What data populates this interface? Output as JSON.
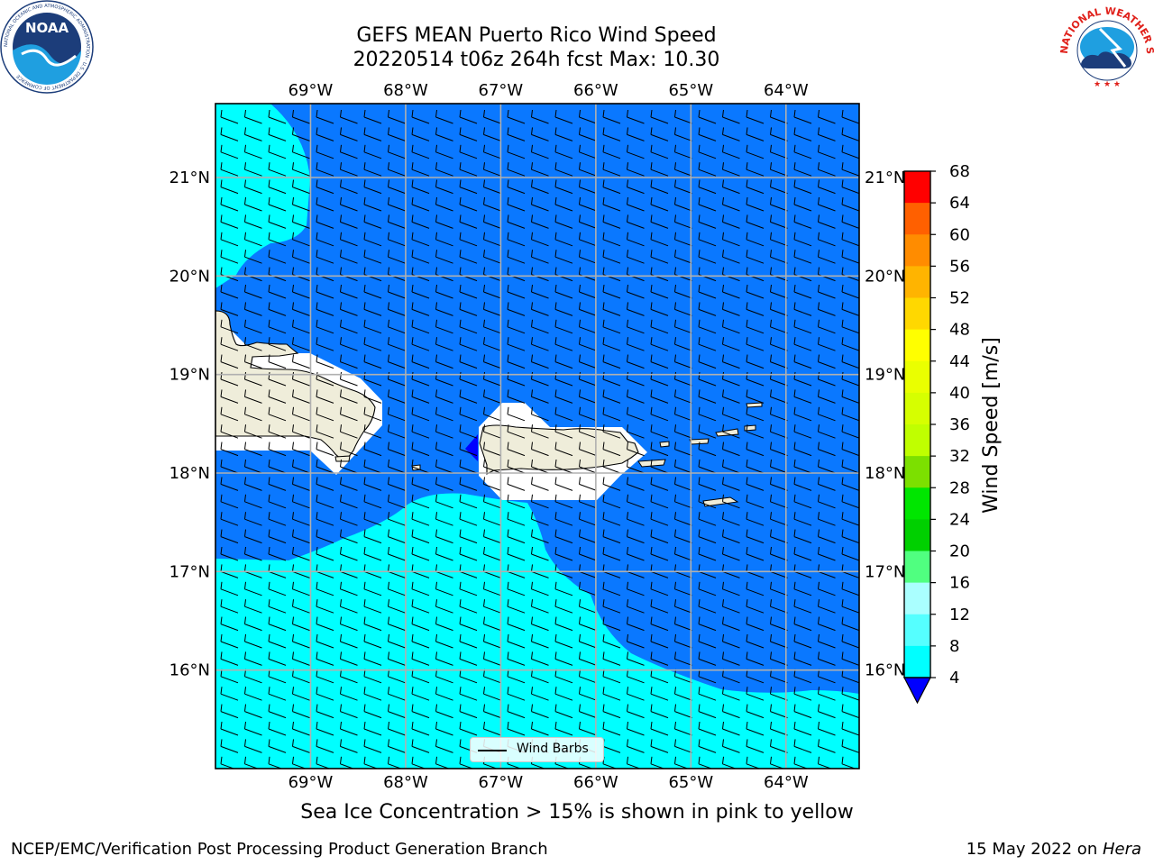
{
  "header": {
    "title_line1": "GEFS MEAN Puerto Rico Wind Speed",
    "title_line2": "20220514 t06z 264h fcst   Max: 10.30"
  },
  "logos": {
    "left": "noaa-logo",
    "right": "nws-logo",
    "left_ring_text": "NATIONAL OCEANIC AND ATMOSPHERIC ADMINISTRATION · U.S. DEPARTMENT OF COMMERCE",
    "left_center_text": "NOAA",
    "right_ring_text": "NATIONAL WEATHER SERVICE"
  },
  "map": {
    "lon_labels": [
      "69°W",
      "68°W",
      "67°W",
      "66°W",
      "65°W",
      "64°W"
    ],
    "lat_labels": [
      "21°N",
      "20°N",
      "19°N",
      "18°N",
      "17°N",
      "16°N"
    ],
    "lon_range": [
      -70.0,
      -63.23
    ],
    "lat_range": [
      15.0,
      21.75
    ],
    "colors": {
      "ocean_5_10": "#0a78ff",
      "ocean_8_12": "#00ffff",
      "land": "#efedda",
      "masked": "#ffffff",
      "low": "#0000ff"
    }
  },
  "legend": {
    "label": "Wind Barbs"
  },
  "colorbar": {
    "label": "Wind Speed [m/s]",
    "ticks": [
      "68",
      "64",
      "60",
      "56",
      "52",
      "48",
      "44",
      "40",
      "36",
      "32",
      "28",
      "24",
      "20",
      "16",
      "12",
      "8",
      "4"
    ],
    "colors": [
      "#ff0000",
      "#ff3000",
      "#ff6000",
      "#ff8c00",
      "#ffb400",
      "#ffd800",
      "#ffff00",
      "#eaff00",
      "#d6ff00",
      "#c0ff00",
      "#7ce000",
      "#00e600",
      "#00d000",
      "#50ff80",
      "#aaffff",
      "#55ffff",
      "#00ffff",
      "#0a78ff",
      "#0000ff"
    ]
  },
  "footer": {
    "subtitle": "Sea Ice Concentration > 15% is shown in pink to yellow",
    "left": "NCEP/EMC/Verification Post Processing Product Generation Branch",
    "right_prefix": "15 May 2022 on ",
    "right_host": "Hera"
  }
}
